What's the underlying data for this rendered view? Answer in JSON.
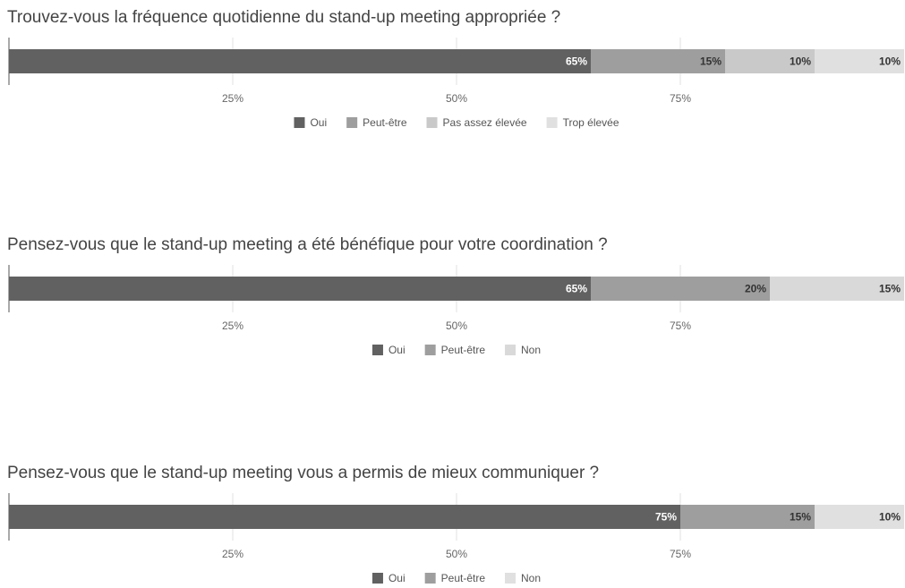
{
  "chart_data": [
    {
      "type": "stacked_bar",
      "title": "Trouvez-vous la fréquence quotidienne du stand-up meeting appropriée ?",
      "xlim": [
        0,
        100
      ],
      "xticks": [
        {
          "value": 25,
          "label": "25%"
        },
        {
          "value": 50,
          "label": "50%"
        },
        {
          "value": 75,
          "label": "75%"
        }
      ],
      "grid": true,
      "legend": "bottom",
      "series": [
        {
          "name": "Oui",
          "color": "#616161",
          "values": [
            65
          ],
          "value_labels": [
            "65%"
          ]
        },
        {
          "name": "Peut-être",
          "color": "#9e9e9e",
          "values": [
            15
          ],
          "value_labels": [
            "15%"
          ]
        },
        {
          "name": "Pas assez élevée",
          "color": "#c9c9c9",
          "values": [
            10
          ],
          "value_labels": [
            "10%"
          ]
        },
        {
          "name": "Trop élevée",
          "color": "#e0e0e0",
          "values": [
            10
          ],
          "value_labels": [
            "10%"
          ]
        }
      ]
    },
    {
      "type": "stacked_bar",
      "title": "Pensez-vous que le stand-up meeting a été bénéfique pour votre coordination ?",
      "xlim": [
        0,
        100
      ],
      "xticks": [
        {
          "value": 25,
          "label": "25%"
        },
        {
          "value": 50,
          "label": "50%"
        },
        {
          "value": 75,
          "label": "75%"
        }
      ],
      "grid": true,
      "legend": "bottom",
      "series": [
        {
          "name": "Oui",
          "color": "#616161",
          "values": [
            65
          ],
          "value_labels": [
            "65%"
          ]
        },
        {
          "name": "Peut-être",
          "color": "#9e9e9e",
          "values": [
            20
          ],
          "value_labels": [
            "20%"
          ]
        },
        {
          "name": "Non",
          "color": "#d9d9d9",
          "values": [
            15
          ],
          "value_labels": [
            "15%"
          ]
        }
      ]
    },
    {
      "type": "stacked_bar",
      "title": "Pensez-vous que le stand-up meeting vous a permis de mieux communiquer ?",
      "xlim": [
        0,
        100
      ],
      "xticks": [
        {
          "value": 25,
          "label": "25%"
        },
        {
          "value": 50,
          "label": "50%"
        },
        {
          "value": 75,
          "label": "75%"
        }
      ],
      "grid": true,
      "legend": "bottom",
      "series": [
        {
          "name": "Oui",
          "color": "#616161",
          "values": [
            75
          ],
          "value_labels": [
            "75%"
          ]
        },
        {
          "name": "Peut-être",
          "color": "#9e9e9e",
          "values": [
            15
          ],
          "value_labels": [
            "15%"
          ]
        },
        {
          "name": "Non",
          "color": "#e0e0e0",
          "values": [
            10
          ],
          "value_labels": [
            "10%"
          ]
        }
      ]
    }
  ]
}
